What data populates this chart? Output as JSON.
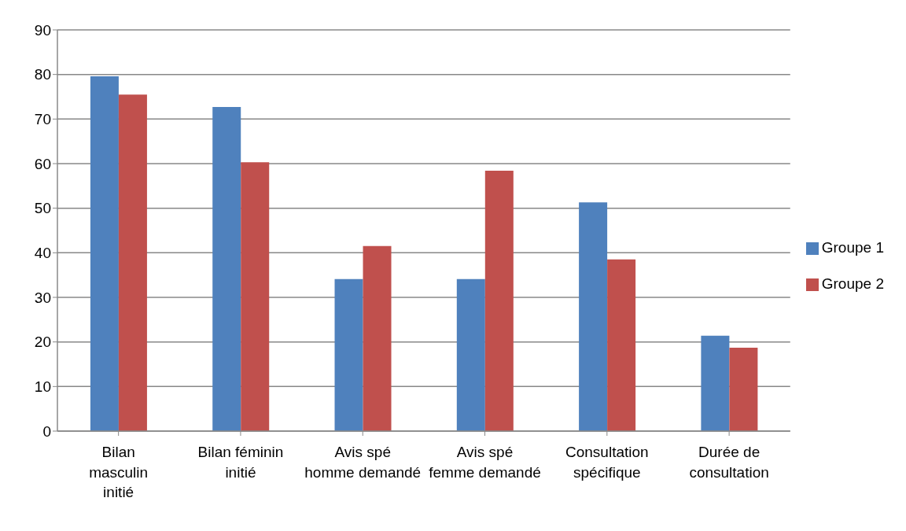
{
  "chart_data": {
    "type": "bar",
    "categories": [
      "Bilan masculin initié",
      "Bilan féminin initié",
      "Avis spé homme demandé",
      "Avis spé femme demandé",
      "Consultation spécifique",
      "Durée de consultation"
    ],
    "series": [
      {
        "name": "Groupe 1",
        "color": "#4f81bd",
        "values": [
          79.6,
          72.7,
          34.1,
          34.1,
          51.3,
          21.4
        ]
      },
      {
        "name": "Groupe 2",
        "color": "#c0504d",
        "values": [
          75.5,
          60.3,
          41.5,
          58.4,
          38.5,
          18.7
        ]
      }
    ],
    "ylim": [
      0,
      90
    ],
    "yticks": [
      0,
      10,
      20,
      30,
      40,
      50,
      60,
      70,
      80,
      90
    ],
    "grid": "y",
    "legend": "right"
  }
}
